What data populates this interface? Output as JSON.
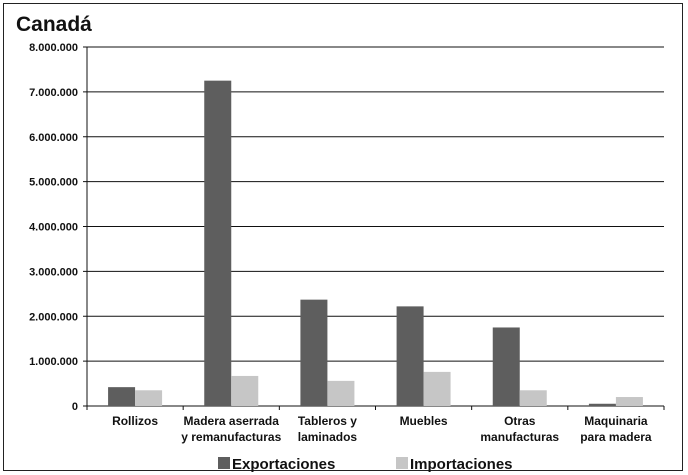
{
  "colors": {
    "exportaciones": "#5e5e5e",
    "importaciones": "#c6c6c6",
    "grid": "#111111"
  },
  "chart_data": {
    "type": "bar",
    "title": "Canadá",
    "xlabel": "",
    "ylabel": "",
    "ylim": [
      0,
      8000000
    ],
    "grid": true,
    "legend_position": "bottom",
    "y_ticks": [
      0,
      1000000,
      2000000,
      3000000,
      4000000,
      5000000,
      6000000,
      7000000,
      8000000
    ],
    "y_tick_labels": [
      "0",
      "1.000.000",
      "2.000.000",
      "3.000.000",
      "4.000.000",
      "5.000.000",
      "6.000.000",
      "7.000.000",
      "8.000.000"
    ],
    "categories": [
      [
        "Rollizos"
      ],
      [
        "Madera aserrada",
        "y remanufacturas"
      ],
      [
        "Tableros y",
        "laminados"
      ],
      [
        "Muebles"
      ],
      [
        "Otras",
        "manufacturas"
      ],
      [
        "Maquinaria",
        "para madera"
      ]
    ],
    "series": [
      {
        "name": "Exportaciones",
        "values": [
          420000,
          7250000,
          2370000,
          2220000,
          1750000,
          50000
        ]
      },
      {
        "name": "Importaciones",
        "values": [
          350000,
          670000,
          560000,
          760000,
          350000,
          200000
        ]
      }
    ]
  }
}
